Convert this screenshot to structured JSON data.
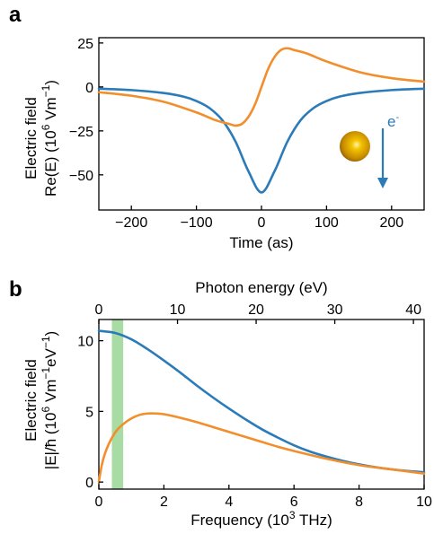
{
  "colors": {
    "blue": "#2b7bb9",
    "orange": "#f28e2b",
    "band": "#a8dca4",
    "axis": "#000000"
  },
  "chart_data": [
    {
      "panel": "a",
      "type": "line",
      "xlabel": "Time (as)",
      "ylabel_lines": [
        "Electric field",
        "Re(E) (10",
        "6",
        " Vm",
        "−1",
        ")"
      ],
      "xlim": [
        -250,
        250
      ],
      "ylim": [
        -70,
        28
      ],
      "xticks": [
        -200,
        -100,
        0,
        100,
        200
      ],
      "xtick_labels": [
        "−200",
        "−100",
        "0",
        "100",
        "200"
      ],
      "yticks": [
        25,
        0,
        -25,
        -50
      ],
      "ytick_labels": [
        "25",
        "0",
        "−25",
        "−50"
      ],
      "series": [
        {
          "color": "#2b7bb9",
          "x": [
            -250,
            -200,
            -150,
            -120,
            -100,
            -80,
            -60,
            -40,
            -20,
            0,
            20,
            40,
            60,
            80,
            100,
            120,
            150,
            200,
            250
          ],
          "y": [
            -1,
            -1.8,
            -3.5,
            -5.5,
            -8,
            -12,
            -19,
            -31,
            -48,
            -60,
            -48,
            -31,
            -19,
            -12,
            -8,
            -5.5,
            -3.5,
            -1.8,
            -1
          ]
        },
        {
          "color": "#f28e2b",
          "x": [
            -250,
            -200,
            -150,
            -100,
            -70,
            -50,
            -40,
            -30,
            -20,
            -10,
            0,
            10,
            20,
            30,
            40,
            50,
            70,
            100,
            150,
            200,
            250
          ],
          "y": [
            -3,
            -5,
            -8.5,
            -14.5,
            -19,
            -21,
            -22,
            -21,
            -17,
            -10,
            0,
            10,
            17,
            21,
            22,
            21,
            19,
            14.5,
            8.5,
            5,
            3
          ]
        }
      ],
      "annotation": {
        "label": "e",
        "superscript": "-"
      }
    },
    {
      "panel": "b",
      "type": "line",
      "xlabel": "Frequency (10",
      "xlabel_sup": "3",
      "xlabel_tail": " THz)",
      "top_xlabel": "Photon energy (eV)",
      "ylabel_lines": [
        "Electric field",
        "|E|/ħ (10",
        "6",
        " Vm",
        "−1",
        "eV",
        "−1",
        ")"
      ],
      "xlim": [
        0,
        10
      ],
      "ylim": [
        -0.5,
        11.5
      ],
      "xticks": [
        0,
        2,
        4,
        6,
        8,
        10
      ],
      "xtick_labels": [
        "0",
        "2",
        "4",
        "6",
        "8",
        "10"
      ],
      "top_xticks": [
        0,
        10,
        20,
        30,
        40
      ],
      "top_xtick_labels": [
        "0",
        "10",
        "20",
        "30",
        "40"
      ],
      "yticks": [
        0,
        5,
        10
      ],
      "ytick_labels": [
        "0",
        "5",
        "10"
      ],
      "highlight_band": [
        0.4,
        0.75
      ],
      "series": [
        {
          "color": "#2b7bb9",
          "x": [
            0,
            0.5,
            1,
            1.5,
            2,
            2.5,
            3,
            3.5,
            4,
            4.5,
            5,
            5.5,
            6,
            6.5,
            7,
            7.5,
            8,
            8.5,
            9,
            9.5,
            10
          ],
          "y": [
            10.7,
            10.55,
            10.1,
            9.4,
            8.6,
            7.75,
            6.85,
            6.0,
            5.2,
            4.45,
            3.75,
            3.15,
            2.6,
            2.15,
            1.8,
            1.5,
            1.25,
            1.05,
            0.9,
            0.78,
            0.7
          ]
        },
        {
          "color": "#f28e2b",
          "x": [
            0,
            0.1,
            0.25,
            0.5,
            0.75,
            1,
            1.25,
            1.5,
            1.75,
            2,
            2.5,
            3,
            3.5,
            4,
            4.5,
            5,
            5.5,
            6,
            7,
            8,
            9,
            10
          ],
          "y": [
            0,
            1.3,
            2.4,
            3.5,
            4.1,
            4.5,
            4.75,
            4.85,
            4.85,
            4.8,
            4.55,
            4.25,
            3.9,
            3.55,
            3.2,
            2.85,
            2.5,
            2.2,
            1.65,
            1.2,
            0.9,
            0.6
          ]
        }
      ]
    }
  ]
}
